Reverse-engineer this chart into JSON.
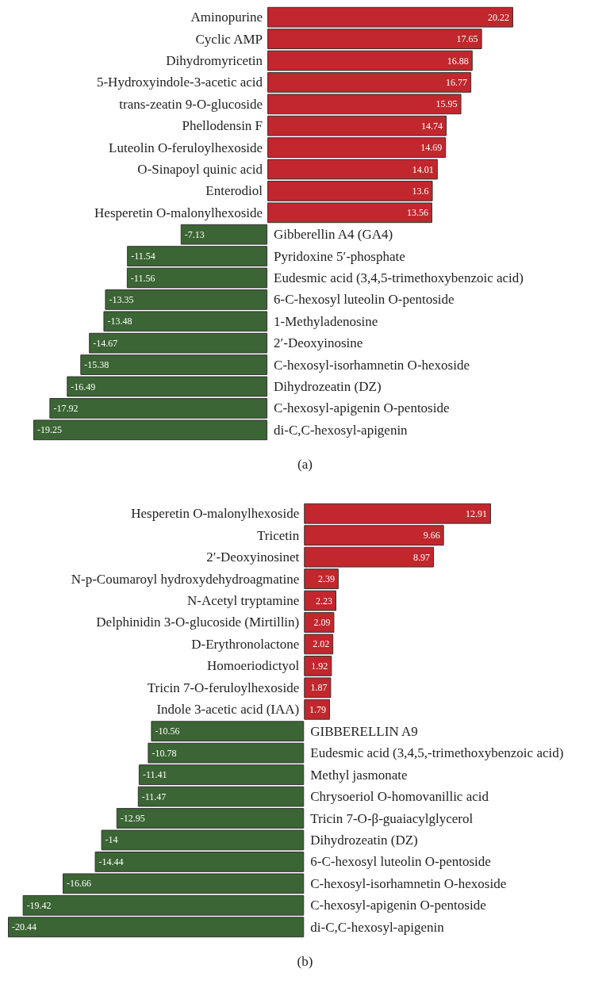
{
  "chart_data": [
    {
      "type": "bar",
      "orientation": "horizontal",
      "data_labels": true,
      "annotations": [
        "(a)"
      ],
      "categories": [
        "Aminopurine",
        "Cyclic AMP",
        "Dihydromyricetin",
        "5-Hydroxyindole-3-acetic acid",
        "trans-zeatin 9-O-glucoside",
        "Phellodensin F",
        "Luteolin O-feruloylhexoside",
        "O-Sinapoyl quinic acid",
        "Enterodiol",
        "Hesperetin O-malonylhexoside",
        "Gibberellin A4 (GA4)",
        "Pyridoxine 5′-phosphate",
        "Eudesmic acid (3,4,5-trimethoxybenzoic acid)",
        "6-C-hexosyl luteolin O-pentoside",
        "1-Methyladenosine",
        "2′-Deoxyinosine",
        "C-hexosyl-isorhamnetin O-hexoside",
        "Dihydrozeatin (DZ)",
        "C-hexosyl-apigenin O-pentoside",
        "di-C,C-hexosyl-apigenin"
      ],
      "values": [
        20.22,
        17.65,
        16.88,
        16.77,
        15.95,
        14.74,
        14.69,
        14.01,
        13.6,
        13.56,
        -7.13,
        -11.54,
        -11.56,
        -13.35,
        -13.48,
        -14.67,
        -15.38,
        -16.49,
        -17.92,
        -19.25
      ],
      "colors": [
        "#c1272d",
        "#c1272d",
        "#c1272d",
        "#c1272d",
        "#c1272d",
        "#c1272d",
        "#c1272d",
        "#c1272d",
        "#c1272d",
        "#c1272d",
        "#3b6534",
        "#3b6534",
        "#3b6534",
        "#3b6534",
        "#3b6534",
        "#3b6534",
        "#3b6534",
        "#3b6534",
        "#3b6534",
        "#3b6534"
      ]
    },
    {
      "type": "bar",
      "orientation": "horizontal",
      "data_labels": true,
      "annotations": [
        "(b)"
      ],
      "categories": [
        "Hesperetin O-malonylhexoside",
        "Tricetin",
        "2′-Deoxyinosinet",
        "N-p-Coumaroyl hydroxydehydroagmatine",
        "N-Acetyl tryptamine",
        "Delphinidin 3-O-glucoside (Mirtillin)",
        "D-Erythronolactone",
        "Homoeriodictyol",
        "Tricin 7-O-feruloylhexoside",
        "Indole 3-acetic acid (IAA)",
        "GIBBERELLIN A9",
        "Eudesmic acid (3,4,5,-trimethoxybenzoic acid)",
        "Methyl jasmonate",
        "Chrysoeriol O-homovanillic acid",
        "Tricin 7-O-β-guaiacylglycerol",
        "Dihydrozeatin (DZ)",
        "6-C-hexosyl luteolin O-pentoside",
        "C-hexosyl-isorhamnetin O-hexoside",
        "C-hexosyl-apigenin O-pentoside",
        "di-C,C-hexosyl-apigenin"
      ],
      "values": [
        12.91,
        9.66,
        8.97,
        2.39,
        2.23,
        2.09,
        2.02,
        1.92,
        1.87,
        1.79,
        -10.56,
        -10.78,
        -11.41,
        -11.47,
        -12.95,
        -14,
        -14.44,
        -16.66,
        -19.42,
        -20.44
      ],
      "colors": [
        "#c1272d",
        "#c1272d",
        "#c1272d",
        "#c1272d",
        "#c1272d",
        "#c1272d",
        "#c1272d",
        "#c1272d",
        "#c1272d",
        "#c1272d",
        "#3b6534",
        "#3b6534",
        "#3b6534",
        "#3b6534",
        "#3b6534",
        "#3b6534",
        "#3b6534",
        "#3b6534",
        "#3b6534",
        "#3b6534"
      ]
    }
  ]
}
